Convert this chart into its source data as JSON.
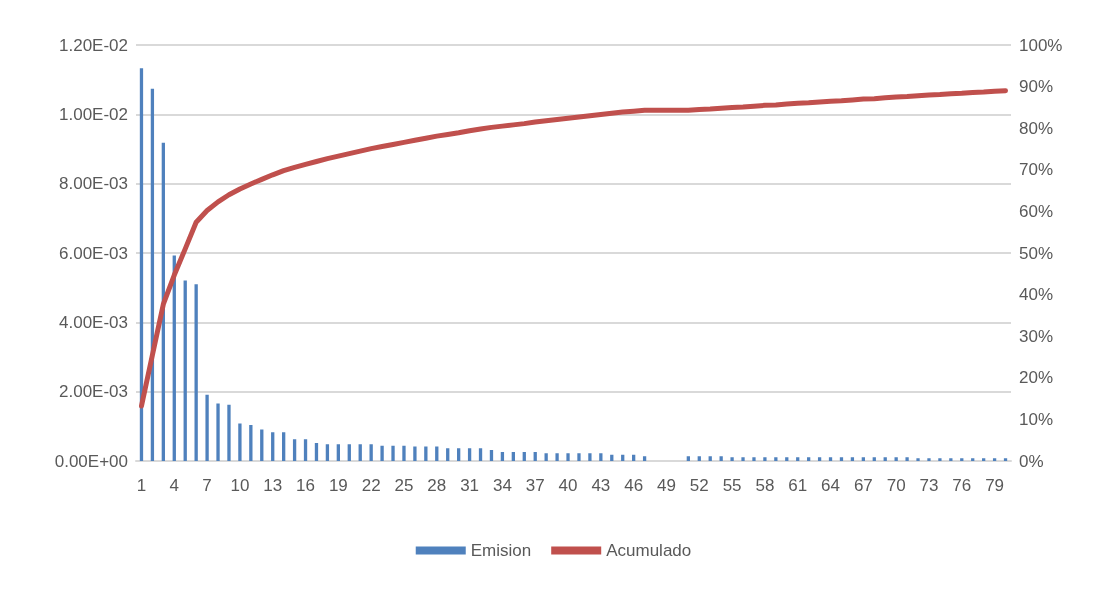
{
  "chart_data": {
    "type": "bar",
    "categories": [
      "1",
      null,
      null,
      "4",
      null,
      null,
      "7",
      null,
      null,
      "10",
      null,
      null,
      "13",
      null,
      null,
      "16",
      null,
      null,
      "19",
      null,
      null,
      "22",
      null,
      null,
      "25",
      null,
      null,
      "28",
      null,
      null,
      "31",
      null,
      null,
      "34",
      null,
      null,
      "37",
      null,
      null,
      "40",
      null,
      null,
      "43",
      null,
      null,
      "46",
      null,
      null,
      "49",
      null,
      null,
      "52",
      null,
      null,
      "55",
      null,
      null,
      "58",
      null,
      null,
      "61",
      null,
      null,
      "64",
      null,
      null,
      "67",
      null,
      null,
      "70",
      null,
      null,
      "73",
      null,
      null,
      "76",
      null,
      null,
      "79",
      null
    ],
    "series": [
      {
        "name": "Emision",
        "color": "#4f81bd",
        "values": [
          0.01133,
          0.01074,
          0.00918,
          0.00593,
          0.00521,
          0.0051,
          0.00191,
          0.00166,
          0.00162,
          0.00108,
          0.00104,
          0.00091,
          0.00083,
          0.00083,
          0.00063,
          0.00063,
          0.00052,
          0.00048,
          0.00048,
          0.00048,
          0.00048,
          0.00048,
          0.00044,
          0.00044,
          0.00044,
          0.00042,
          0.00042,
          0.00042,
          0.00037,
          0.00037,
          0.00037,
          0.00037,
          0.00032,
          0.00026,
          0.00026,
          0.00026,
          0.00026,
          0.00022,
          0.00022,
          0.00022,
          0.00022,
          0.00022,
          0.00022,
          0.00018,
          0.00018,
          0.00018,
          0.00014,
          null,
          null,
          null,
          0.00014,
          0.00014,
          0.00014,
          0.00014,
          0.00011,
          0.00011,
          0.00011,
          0.00011,
          0.00011,
          0.00011,
          0.00011,
          0.00011,
          0.00011,
          0.00011,
          0.00011,
          0.00011,
          0.00011,
          0.00011,
          0.00011,
          0.00011,
          0.00011,
          8e-05,
          8e-05,
          8e-05,
          8e-05,
          8e-05,
          8e-05,
          8e-05,
          8e-05,
          8e-05
        ]
      },
      {
        "name": "Acumulado",
        "type": "line",
        "axis": "y2",
        "color": "#c0504d",
        "values": [
          13.2,
          25.5,
          37.7,
          44.7,
          51,
          57.4,
          60.2,
          62.3,
          64,
          65.4,
          66.6,
          67.7,
          68.8,
          69.8,
          70.6,
          71.3,
          72,
          72.7,
          73.3,
          73.9,
          74.5,
          75.1,
          75.6,
          76.1,
          76.6,
          77.1,
          77.6,
          78.1,
          78.5,
          78.9,
          79.4,
          79.8,
          80.2,
          80.5,
          80.8,
          81.1,
          81.5,
          81.8,
          82.1,
          82.4,
          82.7,
          83,
          83.3,
          83.6,
          83.9,
          84.1,
          84.3,
          84.3,
          84.3,
          84.3,
          84.3,
          84.5,
          84.6,
          84.8,
          85,
          85.1,
          85.3,
          85.5,
          85.6,
          85.8,
          86,
          86.1,
          86.3,
          86.5,
          86.6,
          86.8,
          87,
          87.1,
          87.3,
          87.5,
          87.6,
          87.8,
          88,
          88.1,
          88.3,
          88.4,
          88.6,
          88.7,
          88.9,
          89
        ]
      }
    ],
    "ylim": [
      0,
      0.012
    ],
    "yticks": [
      {
        "value": 0,
        "label": "0.00E+00"
      },
      {
        "value": 0.002,
        "label": "2.00E-03"
      },
      {
        "value": 0.004,
        "label": "4.00E-03"
      },
      {
        "value": 0.006,
        "label": "6.00E-03"
      },
      {
        "value": 0.008,
        "label": "8.00E-03"
      },
      {
        "value": 0.01,
        "label": "1.00E-02"
      },
      {
        "value": 0.012,
        "label": "1.20E-02"
      }
    ],
    "y2lim": [
      0,
      100
    ],
    "y2ticks": [
      {
        "value": 0,
        "label": "0%"
      },
      {
        "value": 10,
        "label": "10%"
      },
      {
        "value": 20,
        "label": "20%"
      },
      {
        "value": 30,
        "label": "30%"
      },
      {
        "value": 40,
        "label": "40%"
      },
      {
        "value": 50,
        "label": "50%"
      },
      {
        "value": 60,
        "label": "60%"
      },
      {
        "value": 70,
        "label": "70%"
      },
      {
        "value": 80,
        "label": "80%"
      },
      {
        "value": 90,
        "label": "90%"
      },
      {
        "value": 100,
        "label": "100%"
      }
    ],
    "grid": "y",
    "legend": "bottom",
    "marker": "none",
    "line_style": "solid"
  }
}
